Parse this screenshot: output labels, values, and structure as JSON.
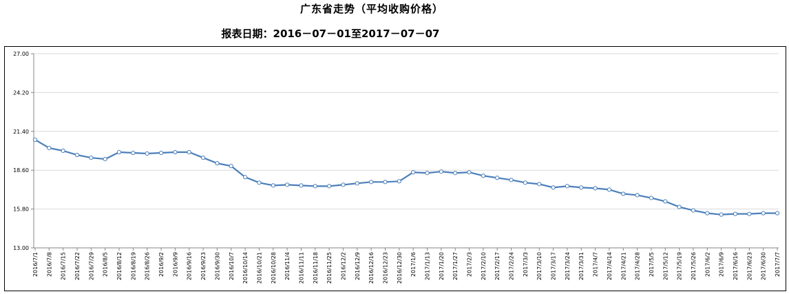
{
  "chart_data": {
    "type": "line",
    "title": "广东省走势（平均收购价格）",
    "subtitle": "报表日期：2016－07－01至2017－07－07",
    "ylim": [
      13.0,
      27.0
    ],
    "yticks": [
      "13.00",
      "15.80",
      "18.60",
      "21.40",
      "24.20",
      "27.00"
    ],
    "grid": true,
    "categories": [
      "2016/7/1",
      "2016/7/8",
      "2016/7/15",
      "2016/7/22",
      "2016/7/29",
      "2016/8/5",
      "2016/8/12",
      "2016/8/19",
      "2016/8/26",
      "2016/9/2",
      "2016/9/9",
      "2016/9/16",
      "2016/9/23",
      "2016/9/30",
      "2016/10/7",
      "2016/10/14",
      "2016/10/21",
      "2016/10/28",
      "2016/11/4",
      "2016/11/11",
      "2016/11/18",
      "2016/11/25",
      "2016/12/2",
      "2016/12/9",
      "2016/12/16",
      "2016/12/23",
      "2016/12/30",
      "2017/1/6",
      "2017/1/13",
      "2017/1/20",
      "2017/1/27",
      "2017/2/3",
      "2017/2/10",
      "2017/2/17",
      "2017/2/24",
      "2017/3/3",
      "2017/3/10",
      "2017/3/17",
      "2017/3/24",
      "2017/3/31",
      "2017/4/7",
      "2017/4/14",
      "2017/4/21",
      "2017/4/28",
      "2017/5/5",
      "2017/5/12",
      "2017/5/19",
      "2017/5/26",
      "2017/6/2",
      "2017/6/9",
      "2017/6/16",
      "2017/6/23",
      "2017/6/30",
      "2017/7/7"
    ],
    "series": [
      {
        "color": "#4a7ebb",
        "values": [
          20.8,
          20.2,
          20.0,
          19.7,
          19.5,
          19.4,
          19.9,
          19.85,
          19.8,
          19.85,
          19.9,
          19.9,
          19.5,
          19.1,
          18.9,
          18.1,
          17.7,
          17.5,
          17.55,
          17.5,
          17.45,
          17.45,
          17.55,
          17.65,
          17.75,
          17.75,
          17.8,
          18.45,
          18.4,
          18.5,
          18.4,
          18.45,
          18.2,
          18.05,
          17.9,
          17.7,
          17.6,
          17.35,
          17.45,
          17.35,
          17.3,
          17.2,
          16.9,
          16.8,
          16.6,
          16.35,
          15.95,
          15.7,
          15.5,
          15.4,
          15.45,
          15.45,
          15.5,
          15.5
        ]
      }
    ]
  }
}
